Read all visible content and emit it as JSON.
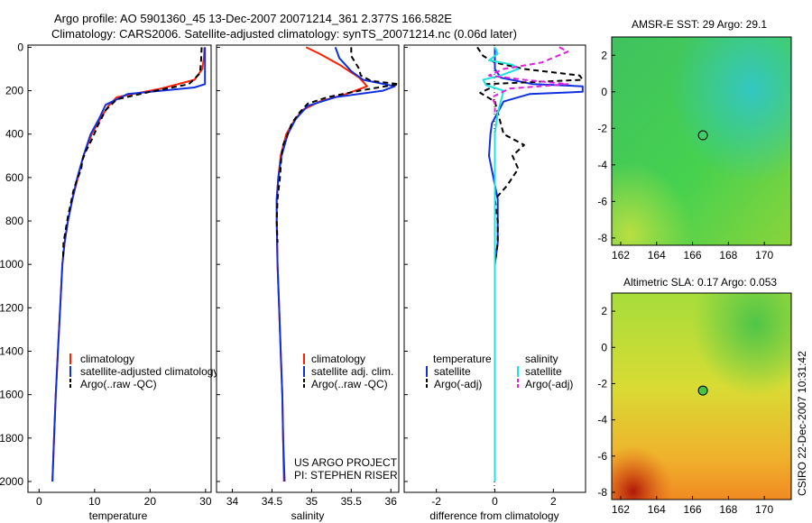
{
  "header": {
    "line1": "Argo profile: AO 5901360_45 13-Dec-2007 20071214_361 2.377S 166.582E",
    "line2": "Climatology: CARS2006. Satellite-adjusted climatology: synTS_20071214.nc (0.06d later)"
  },
  "footer": {
    "side_text": "CSIRO 22-Dec-2007 10:31:42",
    "project": "US ARGO PROJECT",
    "pi": "PI: STEPHEN RISER"
  },
  "colors": {
    "climatology": "#ff2000",
    "satellite": "#1030e0",
    "argo": "#000000",
    "salinity_satellite": "#20e0e0",
    "salinity_argo": "#e020e0"
  },
  "chart_data": [
    {
      "type": "line",
      "id": "temperature",
      "xlabel": "temperature",
      "xlim": [
        -2,
        31
      ],
      "xticks": [
        0,
        10,
        20,
        30
      ],
      "ylim": [
        2050,
        -10
      ],
      "yticks": [
        0,
        200,
        400,
        600,
        800,
        1000,
        1200,
        1400,
        1600,
        1800,
        2000
      ],
      "legend": [
        "climatology",
        "satellite-adjusted climatology",
        "Argo(..raw -QC)"
      ],
      "series": [
        {
          "name": "climatology",
          "style": "solid",
          "color": "#ff2000",
          "points": [
            [
              29.8,
              0
            ],
            [
              29.7,
              50
            ],
            [
              29.4,
              100
            ],
            [
              28,
              150
            ],
            [
              22,
              190
            ],
            [
              14,
              230
            ],
            [
              12.5,
              270
            ],
            [
              11,
              330
            ],
            [
              9.5,
              400
            ],
            [
              8,
              500
            ],
            [
              7,
              600
            ],
            [
              6,
              700
            ],
            [
              5.2,
              800
            ],
            [
              4.6,
              900
            ],
            [
              4.2,
              1000
            ],
            [
              3.8,
              1200
            ],
            [
              3.4,
              1400
            ],
            [
              3,
              1600
            ],
            [
              2.7,
              1800
            ],
            [
              2.4,
              2000
            ]
          ]
        },
        {
          "name": "satellite-adjusted climatology",
          "style": "solid",
          "color": "#1030e0",
          "points": [
            [
              29.9,
              0
            ],
            [
              29.9,
              50
            ],
            [
              29.9,
              100
            ],
            [
              29.9,
              170
            ],
            [
              28,
              185
            ],
            [
              16,
              215
            ],
            [
              12,
              265
            ],
            [
              10.8,
              330
            ],
            [
              9.3,
              400
            ],
            [
              8,
              500
            ],
            [
              6.9,
              600
            ],
            [
              6,
              700
            ],
            [
              5.2,
              800
            ],
            [
              4.6,
              900
            ],
            [
              4.2,
              1000
            ],
            [
              3.8,
              1200
            ],
            [
              3.4,
              1400
            ],
            [
              3,
              1600
            ],
            [
              2.7,
              1800
            ],
            [
              2.4,
              2000
            ]
          ]
        },
        {
          "name": "Argo(..raw -QC)",
          "style": "dashed",
          "color": "#000000",
          "points": [
            [
              29.3,
              0
            ],
            [
              29.2,
              60
            ],
            [
              29,
              120
            ],
            [
              27,
              170
            ],
            [
              20,
              205
            ],
            [
              14,
              240
            ],
            [
              12,
              290
            ],
            [
              10.6,
              360
            ],
            [
              9.6,
              420
            ],
            [
              8.4,
              480
            ],
            [
              7.8,
              520
            ],
            [
              7.6,
              560
            ],
            [
              6.7,
              620
            ],
            [
              6.2,
              660
            ],
            [
              5.7,
              720
            ],
            [
              5.2,
              780
            ],
            [
              4.8,
              840
            ],
            [
              4.4,
              900
            ],
            [
              4.3,
              980
            ]
          ]
        }
      ]
    },
    {
      "type": "line",
      "id": "salinity",
      "xlabel": "salinity",
      "xlim": [
        33.8,
        36.1
      ],
      "xticks": [
        34,
        34.5,
        35,
        35.5,
        36
      ],
      "ylim": [
        2050,
        -10
      ],
      "legend": [
        "climatology",
        "satellite adj. clim.",
        "Argo(..raw -QC)"
      ],
      "series": [
        {
          "name": "climatology",
          "style": "solid",
          "color": "#ff2000",
          "points": [
            [
              34.93,
              0
            ],
            [
              35.1,
              30
            ],
            [
              35.35,
              80
            ],
            [
              35.6,
              140
            ],
            [
              35.7,
              180
            ],
            [
              35.4,
              220
            ],
            [
              35.1,
              250
            ],
            [
              34.88,
              290
            ],
            [
              34.76,
              350
            ],
            [
              34.68,
              400
            ],
            [
              34.61,
              500
            ],
            [
              34.58,
              600
            ],
            [
              34.56,
              700
            ],
            [
              34.56,
              800
            ],
            [
              34.57,
              1000
            ],
            [
              34.59,
              1200
            ],
            [
              34.61,
              1400
            ],
            [
              34.63,
              1600
            ],
            [
              34.64,
              1800
            ],
            [
              34.65,
              2000
            ]
          ]
        },
        {
          "name": "satellite adj. clim.",
          "style": "solid",
          "color": "#1030e0",
          "points": [
            [
              35.3,
              0
            ],
            [
              35.35,
              50
            ],
            [
              35.5,
              110
            ],
            [
              35.65,
              150
            ],
            [
              36.05,
              180
            ],
            [
              35.9,
              200
            ],
            [
              35.3,
              230
            ],
            [
              34.95,
              270
            ],
            [
              34.8,
              330
            ],
            [
              34.7,
              400
            ],
            [
              34.62,
              500
            ],
            [
              34.58,
              600
            ],
            [
              34.56,
              700
            ],
            [
              34.56,
              800
            ],
            [
              34.57,
              1000
            ],
            [
              34.59,
              1200
            ],
            [
              34.61,
              1400
            ],
            [
              34.63,
              1600
            ],
            [
              34.64,
              1800
            ],
            [
              34.66,
              2000
            ]
          ]
        },
        {
          "name": "Argo(..raw -QC)",
          "style": "dashed",
          "color": "#000000",
          "points": [
            [
              35.5,
              0
            ],
            [
              35.5,
              40
            ],
            [
              35.55,
              70
            ],
            [
              35.6,
              100
            ],
            [
              35.62,
              130
            ],
            [
              35.75,
              155
            ],
            [
              36.1,
              170
            ],
            [
              35.6,
              200
            ],
            [
              35.2,
              230
            ],
            [
              34.95,
              260
            ],
            [
              34.85,
              300
            ],
            [
              34.75,
              350
            ],
            [
              34.7,
              400
            ],
            [
              34.64,
              450
            ],
            [
              34.62,
              500
            ],
            [
              34.6,
              600
            ],
            [
              34.57,
              700
            ],
            [
              34.56,
              800
            ],
            [
              34.57,
              900
            ]
          ]
        }
      ]
    },
    {
      "type": "line",
      "id": "difference",
      "xlabel": "difference from climatology",
      "xlim": [
        -3.1,
        3.1
      ],
      "xticks": [
        -2,
        0,
        2
      ],
      "ylim": [
        2050,
        -10
      ],
      "legend": {
        "temperature_header": "temperature",
        "salinity_header": "salinity",
        "items": [
          "satellite",
          "Argo(-adj)",
          "satellite",
          "Argo(-adj)"
        ]
      },
      "series": [
        {
          "name": "temperature satellite",
          "style": "solid",
          "color": "#1030e0",
          "points": [
            [
              0,
              0
            ],
            [
              0,
              60
            ],
            [
              0,
              100
            ],
            [
              0.2,
              140
            ],
            [
              1.3,
              170
            ],
            [
              3,
              180
            ],
            [
              3,
              205
            ],
            [
              1.2,
              215
            ],
            [
              0.3,
              250
            ],
            [
              0.1,
              300
            ],
            [
              -0.1,
              350
            ],
            [
              -0.15,
              400
            ],
            [
              -0.2,
              500
            ],
            [
              0.1,
              700
            ],
            [
              0.1,
              900
            ],
            [
              0,
              1000
            ],
            [
              0,
              2000
            ]
          ]
        },
        {
          "name": "temperature Argo(-adj)",
          "style": "dashed",
          "color": "#000000",
          "points": [
            [
              -0.6,
              0
            ],
            [
              -0.4,
              40
            ],
            [
              0,
              70
            ],
            [
              1,
              100
            ],
            [
              2.9,
              130
            ],
            [
              3,
              150
            ],
            [
              -0.3,
              170
            ],
            [
              -0.2,
              190
            ],
            [
              -0.5,
              210
            ],
            [
              0,
              250
            ],
            [
              0.1,
              300
            ],
            [
              0.3,
              400
            ],
            [
              1,
              450
            ],
            [
              0.6,
              500
            ],
            [
              0.8,
              560
            ],
            [
              0.4,
              640
            ],
            [
              0,
              700
            ],
            [
              0.1,
              800
            ],
            [
              0.1,
              900
            ],
            [
              0,
              1000
            ],
            [
              0,
              1800
            ]
          ]
        },
        {
          "name": "salinity satellite",
          "style": "solid",
          "color": "#20e0e0",
          "points": [
            [
              0,
              0
            ],
            [
              0.1,
              30
            ],
            [
              -0.2,
              60
            ],
            [
              0.6,
              80
            ],
            [
              0.8,
              100
            ],
            [
              0.2,
              130
            ],
            [
              -0.4,
              150
            ],
            [
              -0.3,
              175
            ],
            [
              0.3,
              200
            ],
            [
              0.2,
              250
            ],
            [
              0.1,
              300
            ],
            [
              0,
              400
            ],
            [
              0,
              500
            ],
            [
              0,
              600
            ],
            [
              0,
              800
            ],
            [
              0,
              2000
            ]
          ]
        },
        {
          "name": "salinity Argo(-adj)",
          "style": "dashed",
          "color": "#e020e0",
          "points": [
            [
              2.2,
              0
            ],
            [
              2.5,
              20
            ],
            [
              1.6,
              70
            ],
            [
              0.3,
              100
            ],
            [
              -0.2,
              130
            ],
            [
              1,
              150
            ],
            [
              2.5,
              170
            ],
            [
              0.5,
              190
            ],
            [
              -0.1,
              230
            ],
            [
              0,
              260
            ],
            [
              0,
              300
            ]
          ]
        }
      ]
    },
    {
      "type": "heatmap",
      "id": "sst_map",
      "title": "AMSR-E SST: 29 Argo: 29.1",
      "xlim": [
        161.5,
        171.5
      ],
      "xticks": [
        162,
        164,
        166,
        168,
        170
      ],
      "ylim": [
        -8.4,
        3
      ],
      "yticks": [
        2,
        0,
        -2,
        -4,
        -6,
        -8
      ],
      "float_position": [
        166.58,
        -2.38
      ]
    },
    {
      "type": "heatmap",
      "id": "sla_map",
      "title": "Altimetric SLA: 0.17 Argo: 0.053",
      "xlim": [
        161.5,
        171.5
      ],
      "xticks": [
        162,
        164,
        166,
        168,
        170
      ],
      "ylim": [
        -8.4,
        3
      ],
      "yticks": [
        2,
        0,
        -2,
        -4,
        -6,
        -8
      ],
      "float_position": [
        166.58,
        -2.38
      ]
    }
  ]
}
